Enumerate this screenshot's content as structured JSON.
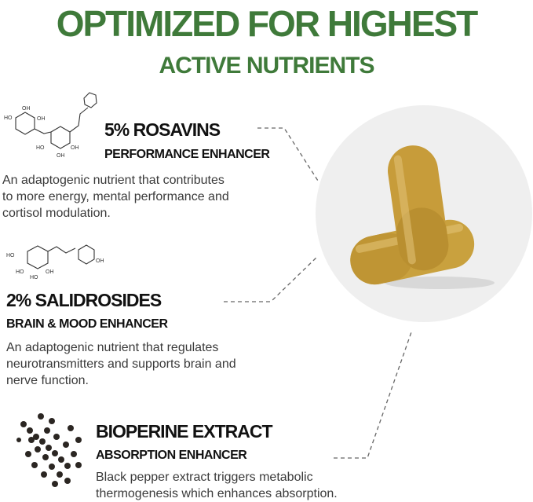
{
  "header": {
    "title_line1": "OPTIMIZED FOR HIGHEST",
    "title_line2": "ACTIVE NUTRIENTS"
  },
  "nutrients": [
    {
      "heading": "5% ROSAVINS",
      "subheading": "PERFORMANCE ENHANCER",
      "description": [
        "An adaptogenic nutrient that contributes",
        "to more energy, mental performance and",
        "cortisol modulation."
      ],
      "icon": "rosavin-molecule-icon"
    },
    {
      "heading": "2% SALIDROSIDES",
      "subheading": "BRAIN & MOOD ENHANCER",
      "description": [
        "An adaptogenic nutrient that regulates",
        "neurotransmitters and supports brain and",
        "nerve function."
      ],
      "icon": "salidroside-molecule-icon"
    },
    {
      "heading": "BIOPERINE EXTRACT",
      "subheading": "ABSORPTION ENHANCER",
      "description": [
        "Black pepper extract triggers metabolic",
        "thermogenesis which enhances absorption."
      ],
      "icon": "black-pepper-icon"
    }
  ],
  "colors": {
    "title_green": "#3f7a3a",
    "heading": "#111111",
    "body": "#3a3a3a",
    "capsule": "#c9a13e"
  }
}
